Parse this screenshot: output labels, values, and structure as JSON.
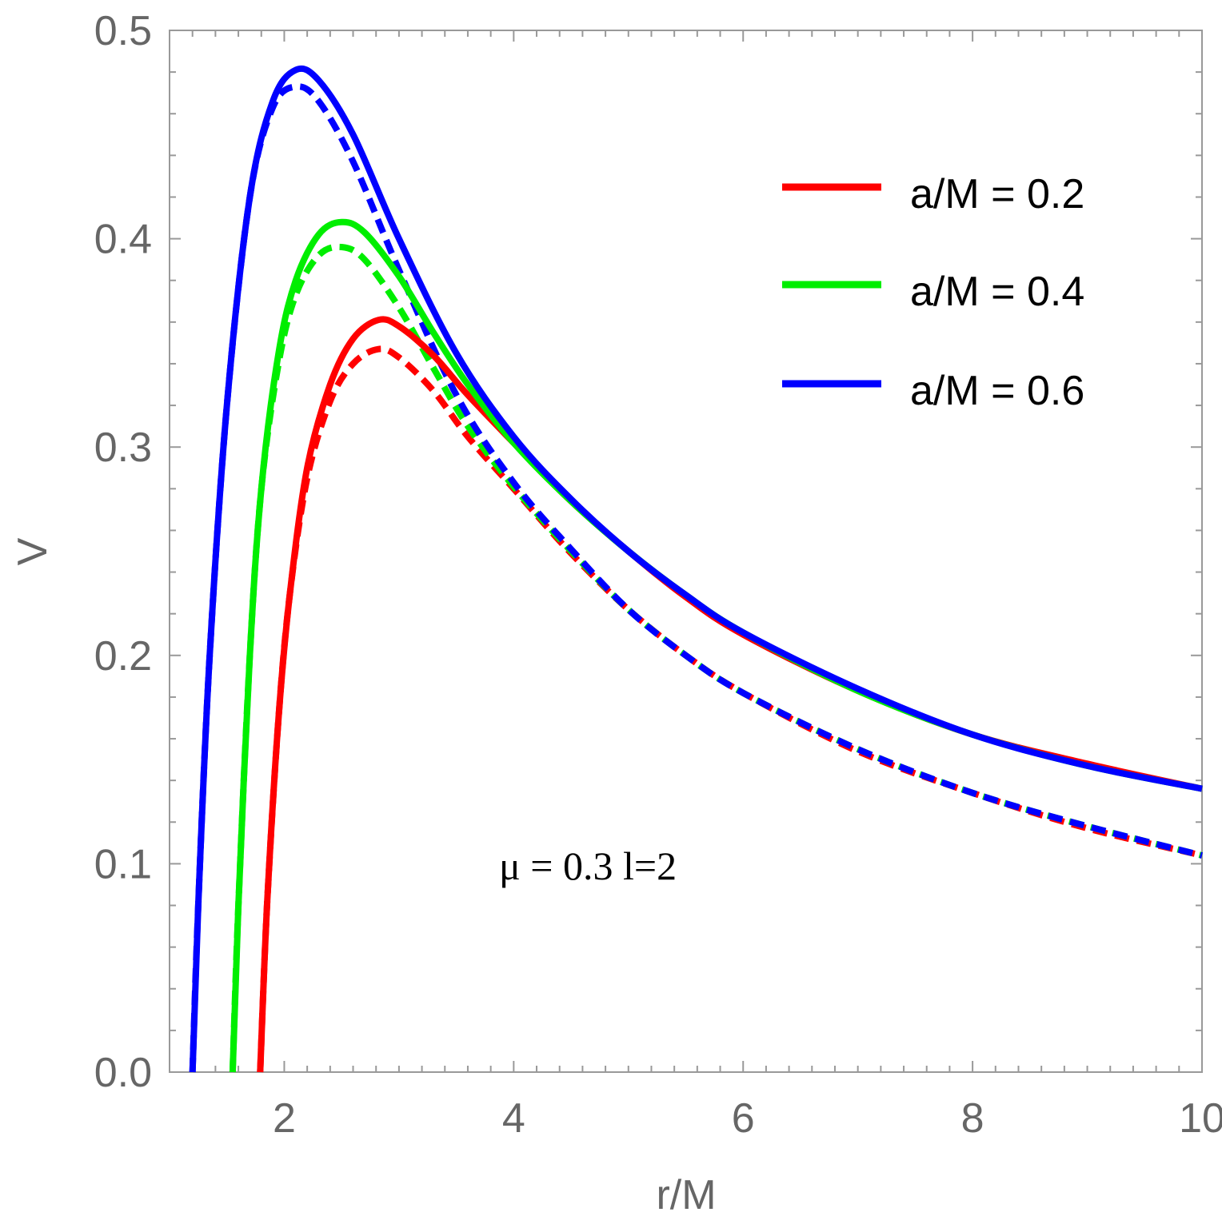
{
  "chart_data": {
    "type": "line",
    "xlabel": "r/M",
    "ylabel": "V",
    "xlim": [
      1,
      10
    ],
    "ylim": [
      0,
      0.5
    ],
    "x_ticks": [
      "2",
      "4",
      "6",
      "8",
      "10"
    ],
    "y_ticks": [
      "0.0",
      "0.1",
      "0.2",
      "0.3",
      "0.4",
      "0.5"
    ],
    "annotation": "μ = 0.3  l=2",
    "legend": {
      "position": "top-right",
      "entries": [
        "a/M = 0.2",
        "a/M = 0.4",
        "a/M = 0.6"
      ]
    },
    "colors": {
      "a02": "#ff0000",
      "a04": "#00ee00",
      "a06": "#0000ff"
    },
    "series": [
      {
        "name": "a/M = 0.2",
        "style": "solid",
        "color": "#ff0000",
        "x": [
          1.79,
          1.85,
          1.95,
          2.05,
          2.2,
          2.4,
          2.6,
          2.82,
          3.0,
          3.3,
          3.6,
          4.0,
          4.5,
          5.0,
          5.5,
          6.0,
          7.0,
          8.0,
          9.0,
          10.0
        ],
        "y": [
          0.0,
          0.08,
          0.17,
          0.23,
          0.29,
          0.33,
          0.352,
          0.361,
          0.358,
          0.344,
          0.325,
          0.302,
          0.274,
          0.25,
          0.228,
          0.21,
          0.183,
          0.162,
          0.148,
          0.136
        ]
      },
      {
        "name": "a/M = 0.2",
        "style": "dashed",
        "color": "#ff0000",
        "x": [
          1.79,
          1.85,
          1.95,
          2.05,
          2.2,
          2.4,
          2.6,
          2.82,
          3.0,
          3.3,
          3.6,
          4.0,
          4.5,
          5.0,
          5.5,
          6.0,
          7.0,
          8.0,
          9.0,
          10.0
        ],
        "y": [
          0.0,
          0.08,
          0.17,
          0.23,
          0.285,
          0.322,
          0.34,
          0.347,
          0.343,
          0.327,
          0.305,
          0.28,
          0.249,
          0.222,
          0.2,
          0.182,
          0.154,
          0.134,
          0.117,
          0.104
        ]
      },
      {
        "name": "a/M = 0.4",
        "style": "solid",
        "color": "#00ee00",
        "x": [
          1.55,
          1.6,
          1.7,
          1.8,
          1.95,
          2.1,
          2.3,
          2.5,
          2.7,
          3.0,
          3.3,
          3.6,
          4.0,
          4.5,
          5.0,
          5.5,
          6.0,
          7.0,
          8.0,
          9.0,
          10.0
        ],
        "y": [
          0.0,
          0.08,
          0.2,
          0.28,
          0.345,
          0.38,
          0.402,
          0.408,
          0.403,
          0.382,
          0.355,
          0.33,
          0.302,
          0.274,
          0.25,
          0.229,
          0.211,
          0.183,
          0.162,
          0.147,
          0.136
        ]
      },
      {
        "name": "a/M = 0.4",
        "style": "dashed",
        "color": "#00ee00",
        "x": [
          1.55,
          1.6,
          1.7,
          1.8,
          1.95,
          2.1,
          2.3,
          2.5,
          2.7,
          3.0,
          3.3,
          3.6,
          4.0,
          4.5,
          5.0,
          5.5,
          6.0,
          7.0,
          8.0,
          9.0,
          10.0
        ],
        "y": [
          0.0,
          0.08,
          0.2,
          0.28,
          0.34,
          0.373,
          0.392,
          0.396,
          0.39,
          0.367,
          0.338,
          0.31,
          0.281,
          0.25,
          0.222,
          0.2,
          0.182,
          0.155,
          0.134,
          0.118,
          0.104
        ]
      },
      {
        "name": "a/M = 0.6",
        "style": "solid",
        "color": "#0000ff",
        "x": [
          1.2,
          1.25,
          1.35,
          1.5,
          1.7,
          1.9,
          2.1,
          2.3,
          2.6,
          3.0,
          3.5,
          4.0,
          4.5,
          5.0,
          5.5,
          6.0,
          7.0,
          8.0,
          9.0,
          10.0
        ],
        "y": [
          0.0,
          0.08,
          0.2,
          0.32,
          0.42,
          0.466,
          0.481,
          0.476,
          0.45,
          0.4,
          0.345,
          0.305,
          0.275,
          0.25,
          0.229,
          0.211,
          0.184,
          0.162,
          0.147,
          0.136
        ]
      },
      {
        "name": "a/M = 0.6",
        "style": "dashed",
        "color": "#0000ff",
        "x": [
          1.2,
          1.25,
          1.35,
          1.5,
          1.7,
          1.9,
          2.1,
          2.3,
          2.6,
          3.0,
          3.5,
          4.0,
          4.5,
          5.0,
          5.5,
          6.0,
          7.0,
          8.0,
          9.0,
          10.0
        ],
        "y": [
          0.0,
          0.08,
          0.2,
          0.32,
          0.42,
          0.463,
          0.473,
          0.466,
          0.437,
          0.385,
          0.325,
          0.283,
          0.251,
          0.222,
          0.2,
          0.182,
          0.155,
          0.134,
          0.118,
          0.104
        ]
      }
    ]
  }
}
